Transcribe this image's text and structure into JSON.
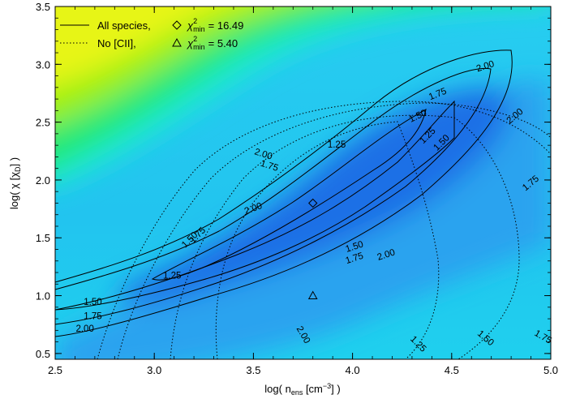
{
  "chart_data": {
    "type": "heatmap",
    "title": "",
    "xlabel": "log( n",
    "xlabel_sub": "ens",
    "xlabel_tail": " [cm",
    "xlabel_sup": "−3",
    "xlabel_end": "] )",
    "ylabel": "log( χ [χ",
    "ylabel_sub": "D",
    "ylabel_end": "] )",
    "xlim": [
      2.5,
      5.0
    ],
    "ylim": [
      0.45,
      3.5
    ],
    "x_ticks": [
      "2.5",
      "3.0",
      "3.5",
      "4.0",
      "4.5",
      "5.0"
    ],
    "y_ticks": [
      "0.5",
      "1.0",
      "1.5",
      "2.0",
      "2.5",
      "3.0",
      "3.5"
    ],
    "colormap_colors": [
      "#1f6fe6",
      "#2a9bf0",
      "#27cdf0",
      "#1fe9d2",
      "#22e874",
      "#5ff00e",
      "#b6f20a",
      "#e7f512"
    ],
    "legend": {
      "entries": [
        {
          "label": "All species,",
          "style": "solid",
          "marker": "diamond",
          "chi_label": "χ",
          "chi_sup": "2",
          "chi_sub": "min",
          "chi_value": "=  16.49"
        },
        {
          "label": "No [CII],",
          "style": "dotted",
          "marker": "triangle",
          "chi_label": "χ",
          "chi_sup": "2",
          "chi_sub": "min",
          "chi_value": "=    5.40"
        }
      ]
    },
    "minima": [
      {
        "series": "All species",
        "marker": "diamond",
        "x": 3.8,
        "y": 1.8
      },
      {
        "series": "No [CII]",
        "marker": "triangle",
        "x": 3.8,
        "y": 1.0
      }
    ],
    "contour_levels": [
      "1.25",
      "1.50",
      "1.75",
      "2.00"
    ],
    "contour_labels": [
      {
        "text": "2.00",
        "x": 4.67,
        "y": 2.98,
        "rot": -18
      },
      {
        "text": "1.75",
        "x": 4.43,
        "y": 2.74,
        "rot": -22
      },
      {
        "text": "1.50",
        "x": 4.33,
        "y": 2.55,
        "rot": -25
      },
      {
        "text": "1.25",
        "x": 3.92,
        "y": 2.3,
        "rot": 0
      },
      {
        "text": "1.25",
        "x": 4.38,
        "y": 2.38,
        "rot": -45
      },
      {
        "text": "1.50",
        "x": 4.45,
        "y": 2.32,
        "rot": -45
      },
      {
        "text": "2.00",
        "x": 3.5,
        "y": 1.75,
        "rot": -20
      },
      {
        "text": "1.50",
        "x": 3.18,
        "y": 1.48,
        "rot": -45
      },
      {
        "text": "1.75",
        "x": 3.22,
        "y": 1.52,
        "rot": -45
      },
      {
        "text": "1.50",
        "x": 4.01,
        "y": 1.42,
        "rot": -18
      },
      {
        "text": "1.75",
        "x": 4.01,
        "y": 1.32,
        "rot": -18
      },
      {
        "text": "2.00",
        "x": 4.17,
        "y": 1.35,
        "rot": -18
      },
      {
        "text": "1.25",
        "x": 3.09,
        "y": 1.17,
        "rot": 0
      },
      {
        "text": "1.50",
        "x": 2.69,
        "y": 0.94,
        "rot": 0
      },
      {
        "text": "1.75",
        "x": 2.69,
        "y": 0.82,
        "rot": 0
      },
      {
        "text": "2.00",
        "x": 2.65,
        "y": 0.71,
        "rot": 0
      },
      {
        "text": "2.00",
        "x": 3.55,
        "y": 2.22,
        "rot": 18
      },
      {
        "text": "1.75",
        "x": 3.58,
        "y": 2.12,
        "rot": 18
      },
      {
        "text": "2.00",
        "x": 4.82,
        "y": 2.55,
        "rot": -40
      },
      {
        "text": "1.75",
        "x": 4.9,
        "y": 1.97,
        "rot": -40
      },
      {
        "text": "2.00",
        "x": 3.75,
        "y": 0.66,
        "rot": 60
      },
      {
        "text": "1.25",
        "x": 4.33,
        "y": 0.58,
        "rot": 45
      },
      {
        "text": "1.50",
        "x": 4.67,
        "y": 0.63,
        "rot": 40
      },
      {
        "text": "1.75",
        "x": 4.96,
        "y": 0.64,
        "rot": 30
      }
    ]
  }
}
